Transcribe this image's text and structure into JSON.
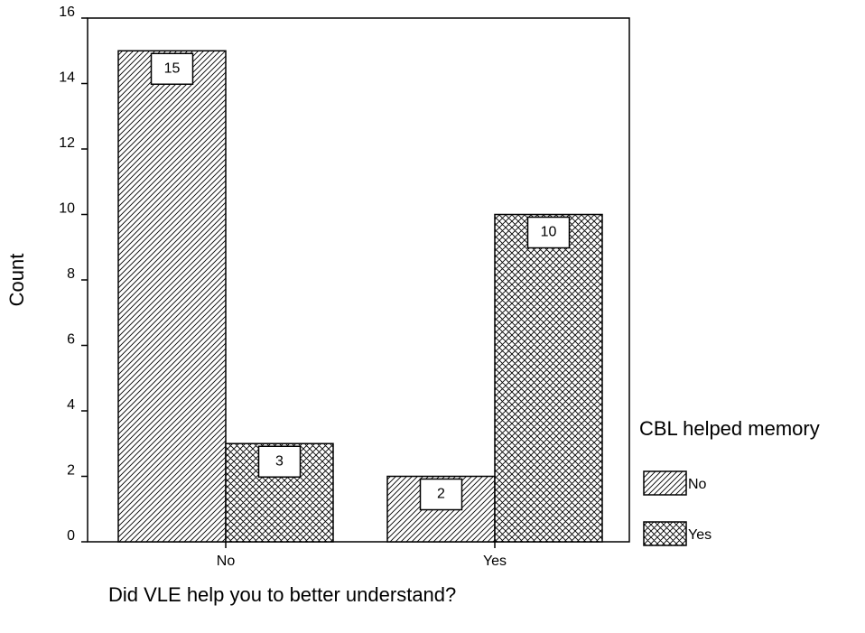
{
  "chart_data": {
    "type": "bar",
    "x_label": "Did VLE help you to better understand?",
    "y_label": "Count",
    "categories": [
      "No",
      "Yes"
    ],
    "series": [
      {
        "name": "No",
        "pattern": "hatch",
        "color": "#000000",
        "values": [
          15,
          2
        ]
      },
      {
        "name": "Yes",
        "pattern": "crosshatch",
        "color": "#000000",
        "values": [
          3,
          10
        ]
      }
    ],
    "legend_title": "CBL helped memory",
    "legend": "right",
    "ylim": [
      0,
      16
    ],
    "yticks": [
      0,
      2,
      4,
      6,
      8,
      10,
      12,
      14,
      16
    ]
  }
}
